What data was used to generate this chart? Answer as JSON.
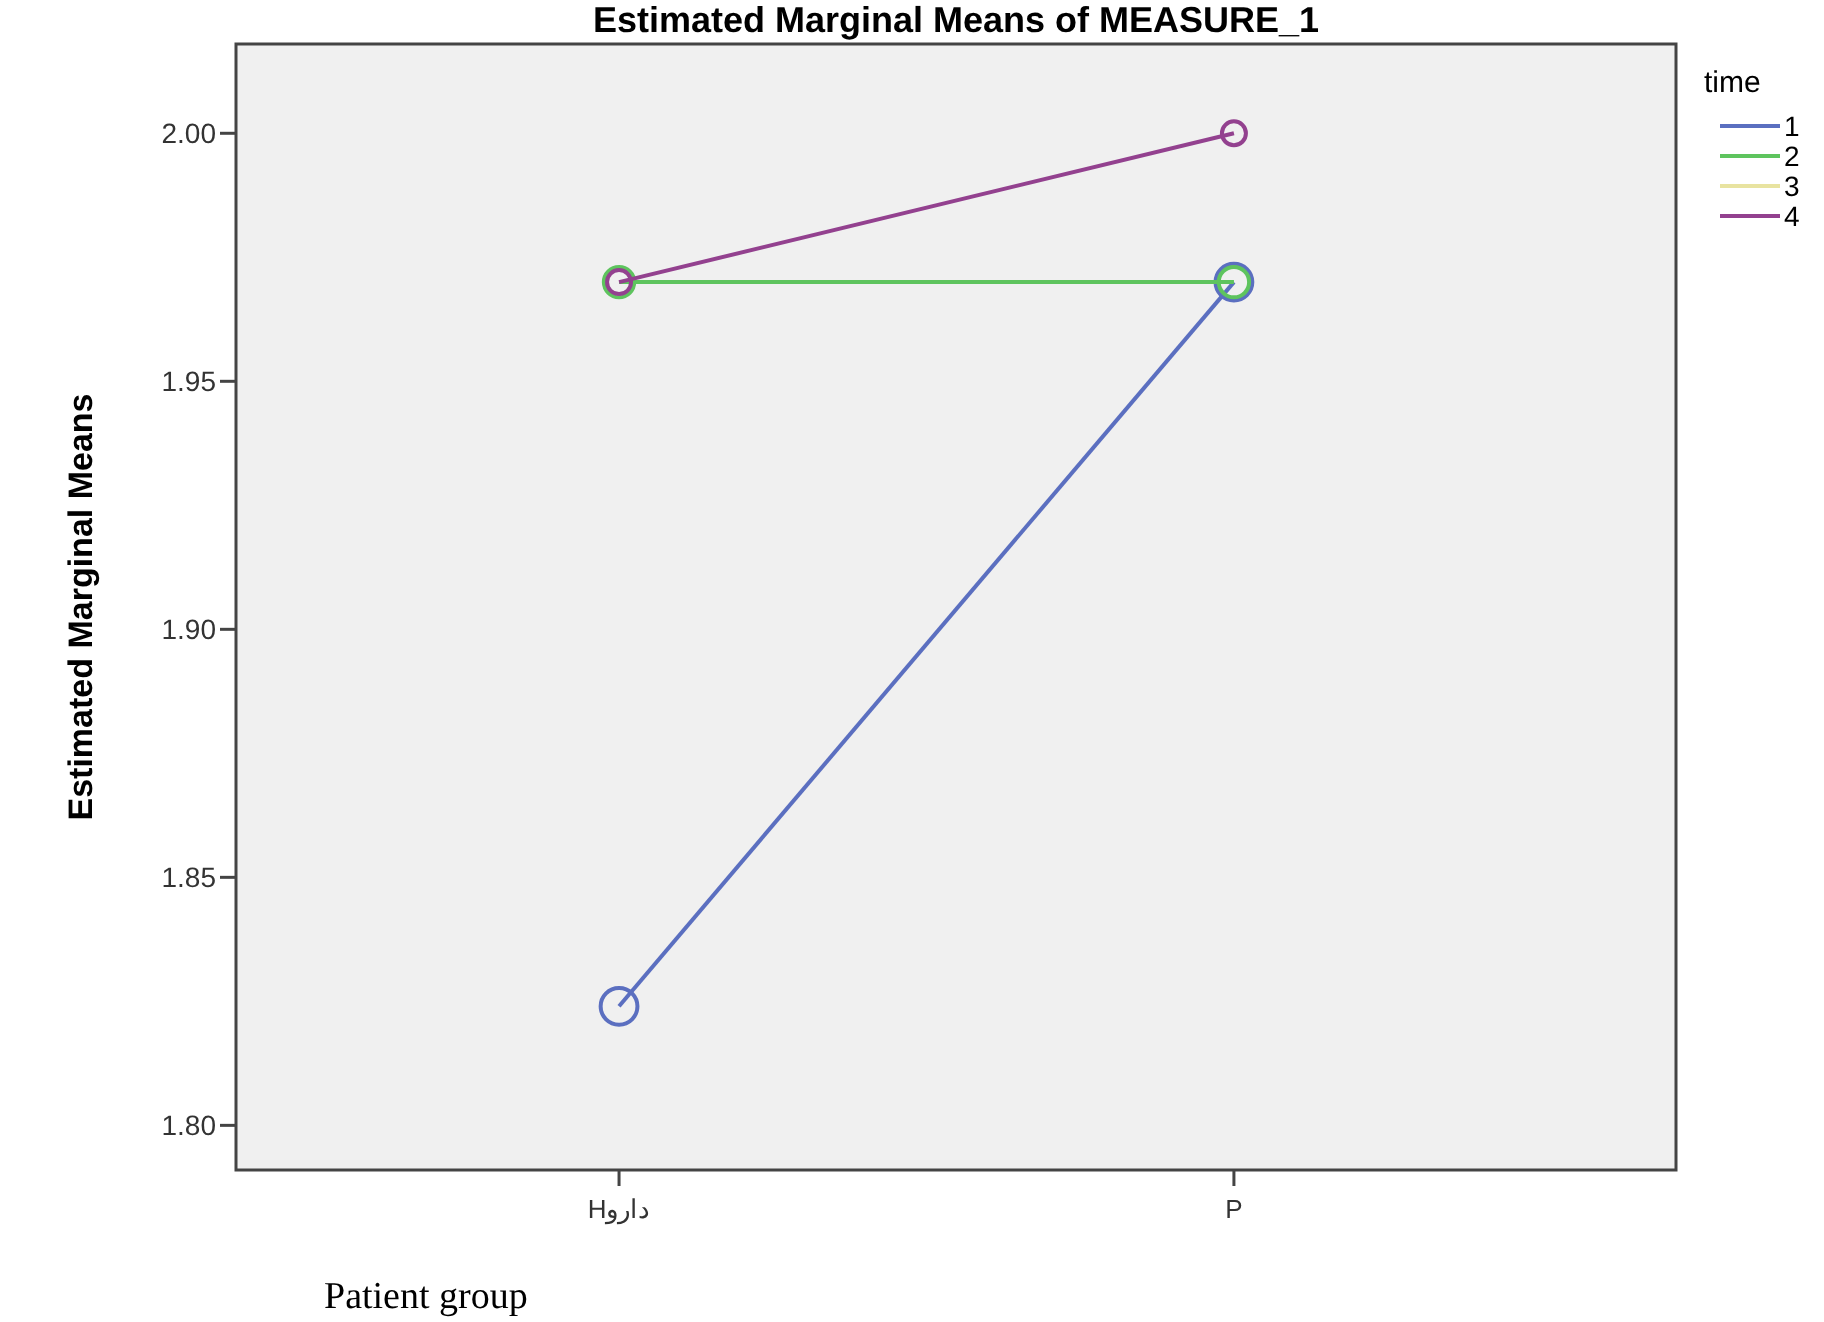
{
  "chart_data": {
    "type": "line",
    "title": "Estimated Marginal Means of MEASURE_1",
    "xlabel": "Patient group",
    "ylabel": "Estimated Marginal Means",
    "legend_title": "time",
    "categories": [
      "Hدارو",
      "P"
    ],
    "series": [
      {
        "name": "1",
        "color": "#5b6fc0",
        "values": [
          1.824,
          1.97
        ]
      },
      {
        "name": "2",
        "color": "#5ec45e",
        "values": [
          1.97,
          1.97
        ]
      },
      {
        "name": "3",
        "color": "#e8e3a0",
        "values": [
          null,
          null
        ]
      },
      {
        "name": "4",
        "color": "#93418f",
        "values": [
          1.97,
          2.0
        ]
      }
    ],
    "ylim": [
      1.791,
      2.018
    ],
    "yticks": [
      {
        "value": 1.8,
        "label": "1.80"
      },
      {
        "value": 1.85,
        "label": "1.85"
      },
      {
        "value": 1.9,
        "label": "1.90"
      },
      {
        "value": 1.95,
        "label": "1.95"
      },
      {
        "value": 2.0,
        "label": "2.00"
      }
    ],
    "marker": "circle",
    "grid": false,
    "legend": "top right"
  }
}
